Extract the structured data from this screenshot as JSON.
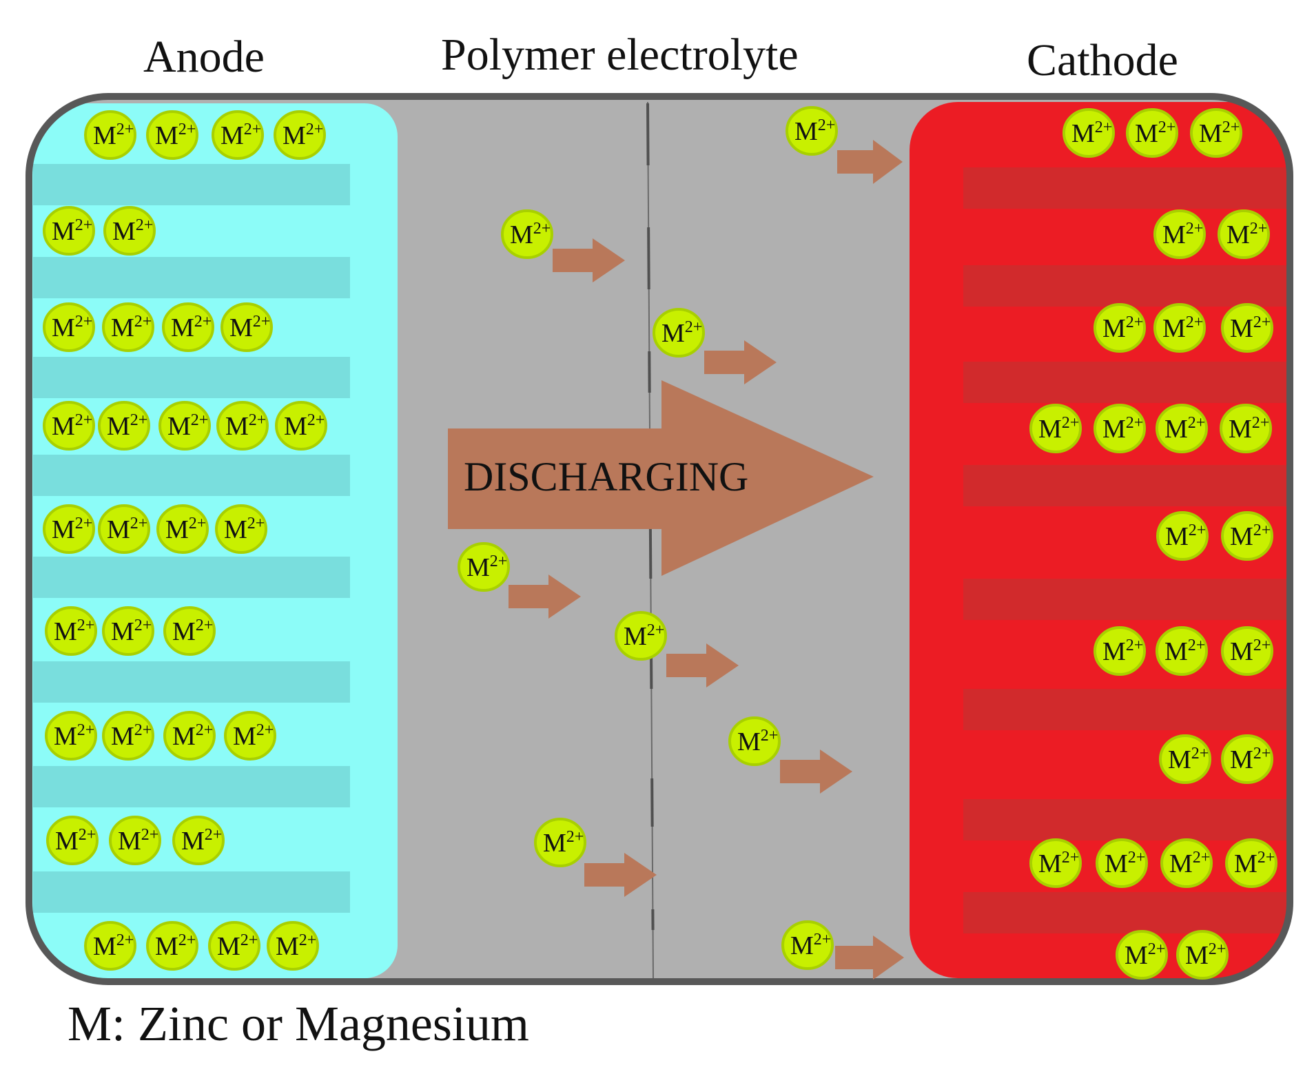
{
  "headings": {
    "anode": "Anode",
    "electrolyte": "Polymer electrolyte",
    "cathode": "Cathode"
  },
  "ion": {
    "base": "M",
    "charge": "2+"
  },
  "arrow_label": "DISCHARGING",
  "legend": "M: Zinc or Magnesium",
  "colors": {
    "frame": "#585858",
    "electrolyte": "#b0b0b0",
    "anode": "#8cfcf8",
    "anode_stripe": "#79dedd",
    "cathode": "#ec1c24",
    "cathode_stripe": "#d12a2c",
    "ion_fill": "#c8f000",
    "ion_stroke": "#a8d000",
    "arrow": "#b9785a",
    "separator": "#505050"
  },
  "anode_ion_rows": [
    4,
    2,
    4,
    5,
    4,
    3,
    4,
    3,
    4
  ],
  "cathode_ion_rows": [
    3,
    2,
    3,
    4,
    2,
    3,
    2,
    4,
    2
  ],
  "migrating_ion_count": 8
}
